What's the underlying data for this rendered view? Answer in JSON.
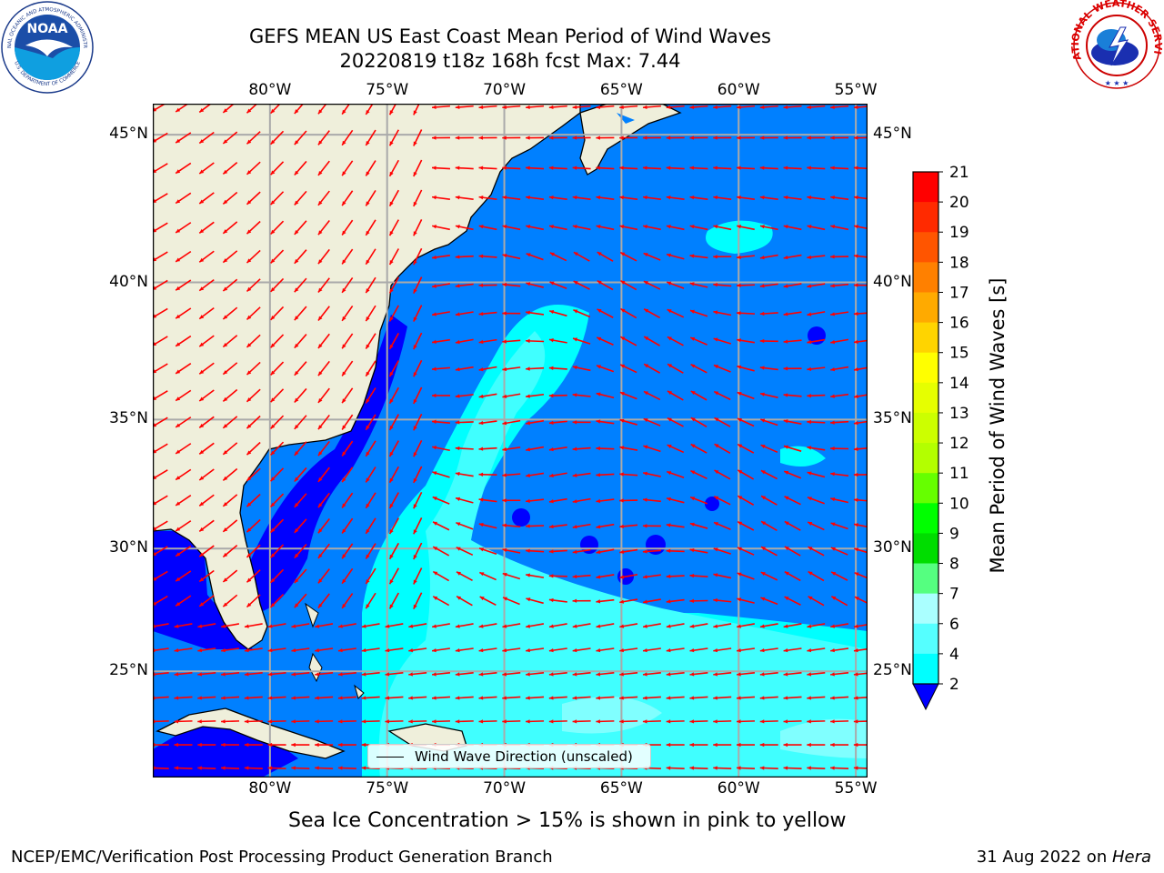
{
  "header": {
    "title_line1": "GEFS MEAN US East Coast Mean Period of Wind Waves",
    "title_line2": "20220819 t18z 168h fcst   Max: 7.44"
  },
  "logos": {
    "noaa_text": "NOAA",
    "noaa_ring_top": "NATIONAL OCEANIC AND ATMOSPHERIC ADMINISTRATION",
    "noaa_ring_bottom": "U.S. DEPARTMENT OF COMMERCE",
    "nws_ring": "NATIONAL WEATHER SERVICE"
  },
  "map": {
    "lon_labels": [
      "80°W",
      "75°W",
      "70°W",
      "65°W",
      "60°W",
      "55°W"
    ],
    "lat_labels": [
      "45°N",
      "40°N",
      "35°N",
      "30°N",
      "25°N"
    ],
    "extent": {
      "lon": [
        -85,
        -54.5
      ],
      "lat": [
        20.5,
        46
      ]
    },
    "colors": {
      "land": "#efefdb",
      "ocean_2_4": "#0080ff",
      "ocean_lt2": "#0000ff",
      "ocean_4_6": "#00ffff",
      "ocean_6_8": "#40ffff",
      "ocean_8_9": "#80ffff",
      "grid": "#aaaaaa",
      "arrow": "#ff0000"
    },
    "legend_label": "Wind Wave Direction (unscaled)"
  },
  "colorbar": {
    "label": "Mean Period of Wind Waves [s]",
    "ticks": [
      "21",
      "20",
      "19",
      "18",
      "17",
      "16",
      "15",
      "14",
      "13",
      "12",
      "11",
      "10",
      "9",
      "8",
      "7",
      "6",
      "4",
      "2"
    ],
    "colors": [
      "#ff0000",
      "#ff2a00",
      "#ff5500",
      "#ff8000",
      "#ffaa00",
      "#ffd400",
      "#ffff00",
      "#e6ff00",
      "#ccff00",
      "#b3ff00",
      "#66ff00",
      "#00ff00",
      "#00dd00",
      "#55ff80",
      "#aaffff",
      "#55ffff",
      "#00ffff",
      "#0080ff"
    ],
    "under_color": "#0000ff"
  },
  "subtitle": "Sea Ice Concentration > 15% is shown in pink to yellow",
  "footer": {
    "left": "NCEP/EMC/Verification Post Processing Product Generation Branch",
    "right_date": "31 Aug 2022 on ",
    "right_host": "Hera"
  }
}
